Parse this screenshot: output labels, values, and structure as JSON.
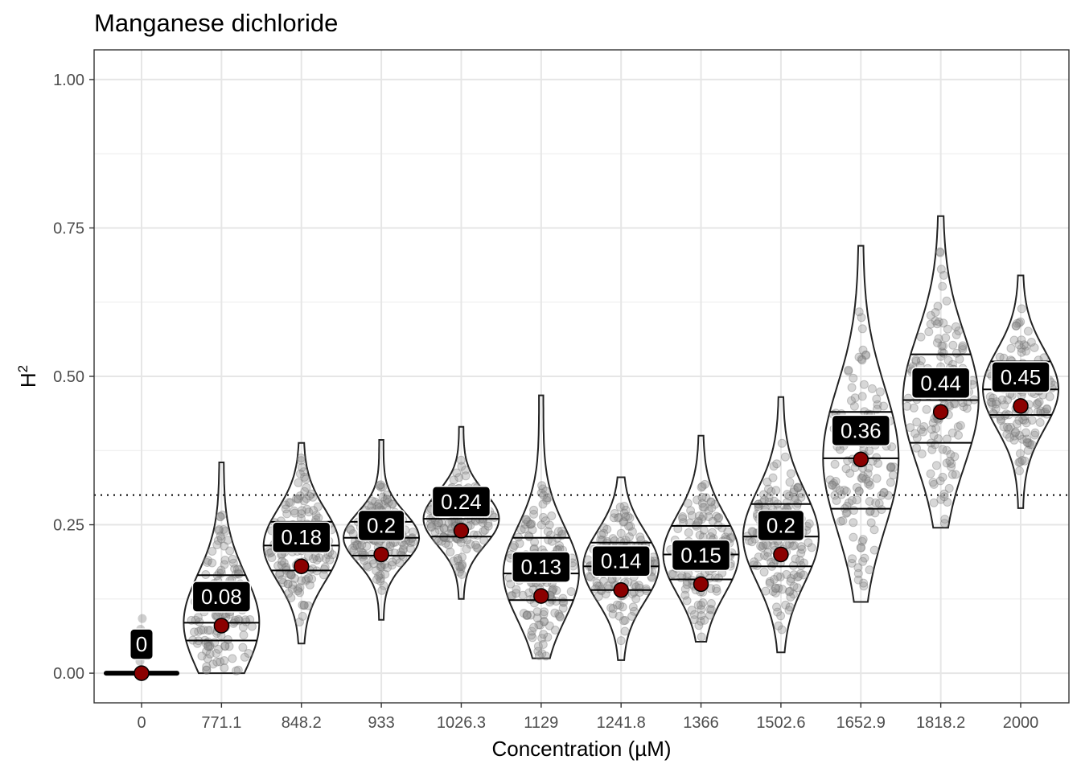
{
  "chart_data": {
    "type": "violin",
    "title": "Manganese dichloride",
    "xlabel": "Concentration (µM)",
    "ylabel": "H",
    "ylabel_superscript": "2",
    "ylim": [
      -0.05,
      1.05
    ],
    "yticks": [
      0.0,
      0.25,
      0.5,
      0.75,
      1.0
    ],
    "ytick_labels": [
      "0.00",
      "0.25",
      "0.50",
      "0.75",
      "1.00"
    ],
    "reference_line": 0.3,
    "categories": [
      "0",
      "771.1",
      "848.2",
      "933",
      "1026.3",
      "1129",
      "1241.8",
      "1366",
      "1502.6",
      "1652.9",
      "1818.2",
      "2000"
    ],
    "means": [
      0,
      0.08,
      0.18,
      0.2,
      0.24,
      0.13,
      0.14,
      0.15,
      0.2,
      0.36,
      0.44,
      0.45
    ],
    "mean_labels": [
      "0",
      "0.08",
      "0.18",
      "0.2",
      "0.24",
      "0.13",
      "0.14",
      "0.15",
      "0.2",
      "0.36",
      "0.44",
      "0.45"
    ],
    "quartiles": [
      [
        0,
        0,
        0
      ],
      [
        0.055,
        0.085,
        0.165
      ],
      [
        0.173,
        0.215,
        0.255
      ],
      [
        0.198,
        0.228,
        0.255
      ],
      [
        0.23,
        0.26,
        0.29
      ],
      [
        0.123,
        0.168,
        0.228
      ],
      [
        0.14,
        0.18,
        0.22
      ],
      [
        0.158,
        0.2,
        0.248
      ],
      [
        0.18,
        0.23,
        0.285
      ],
      [
        0.277,
        0.362,
        0.44
      ],
      [
        0.388,
        0.46,
        0.537
      ],
      [
        0.435,
        0.478,
        0.525
      ]
    ],
    "ranges": [
      [
        0,
        0.1
      ],
      [
        0.0,
        0.355
      ],
      [
        0.05,
        0.388
      ],
      [
        0.09,
        0.393
      ],
      [
        0.125,
        0.415
      ],
      [
        0.025,
        0.468
      ],
      [
        0.022,
        0.33
      ],
      [
        0.053,
        0.4
      ],
      [
        0.035,
        0.465
      ],
      [
        0.12,
        0.72
      ],
      [
        0.245,
        0.77
      ],
      [
        0.278,
        0.67
      ]
    ]
  }
}
